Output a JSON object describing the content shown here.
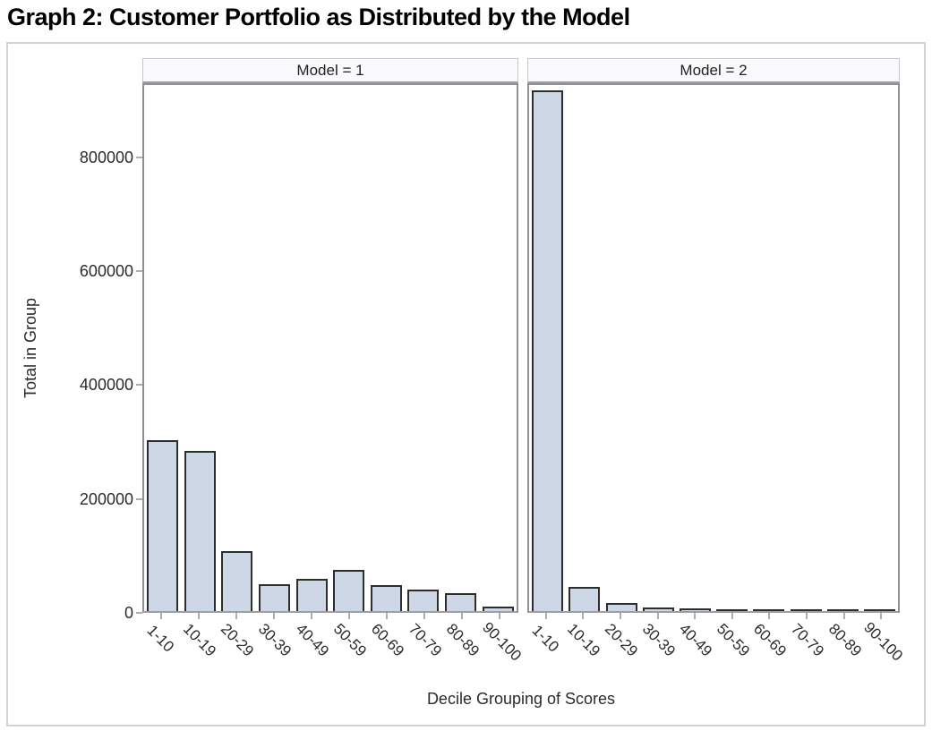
{
  "title": "Graph 2: Customer Portfolio as Distributed by the Model",
  "chart_data": {
    "type": "bar",
    "title": "Graph 2: Customer Portfolio as Distributed by the Model",
    "xlabel": "Decile Grouping of Scores",
    "ylabel": "Total in Group",
    "categories": [
      "1-10",
      "10-19",
      "20-29",
      "30-39",
      "40-49",
      "50-59",
      "60-69",
      "70-79",
      "80-89",
      "90-100"
    ],
    "series": [
      {
        "name": "Model = 1",
        "values": [
          300000,
          281000,
          105000,
          47000,
          57000,
          72000,
          45000,
          38000,
          31000,
          8000
        ]
      },
      {
        "name": "Model = 2",
        "values": [
          915000,
          43000,
          14000,
          7000,
          5000,
          3500,
          3000,
          3000,
          3000,
          3000
        ]
      }
    ],
    "yticks": [
      0,
      200000,
      400000,
      600000,
      800000
    ],
    "ytick_labels": [
      "0",
      "200000",
      "400000",
      "600000",
      "800000"
    ],
    "ylim": [
      0,
      930000
    ],
    "grid": false,
    "legend": "none",
    "colors": {
      "bar_fill": "#cdd7e6",
      "bar_border": "#2d2d2d",
      "panel_border": "#8e9093",
      "axis_tick": "#abadb0",
      "header_bg": "#fafafc",
      "frame_border": "#d2d2d6",
      "text": "#2b2b2b"
    }
  }
}
